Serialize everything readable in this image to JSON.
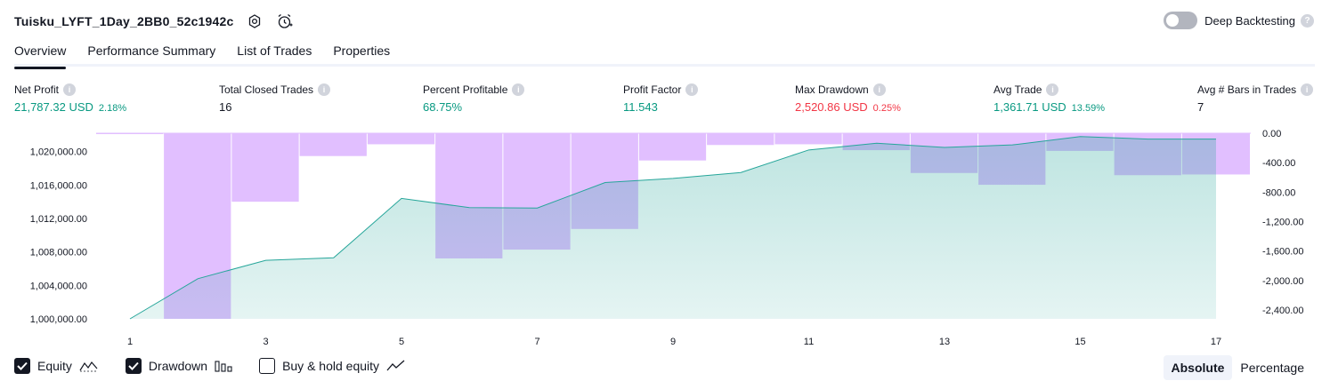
{
  "header": {
    "strategy_name": "Tuisku_LYFT_1Day_2BB0_52c1942c"
  },
  "deep_backtesting": {
    "label": "Deep Backtesting",
    "enabled": false
  },
  "tabs": [
    "Overview",
    "Performance Summary",
    "List of Trades",
    "Properties"
  ],
  "metrics": [
    {
      "label": "Net Profit",
      "value": "21,787.32 USD",
      "sub": "2.18%",
      "tone": "green"
    },
    {
      "label": "Total Closed Trades",
      "value": "16",
      "sub": "",
      "tone": "dark"
    },
    {
      "label": "Percent Profitable",
      "value": "68.75%",
      "sub": "",
      "tone": "green"
    },
    {
      "label": "Profit Factor",
      "value": "11.543",
      "sub": "",
      "tone": "green"
    },
    {
      "label": "Max Drawdown",
      "value": "2,520.86 USD",
      "sub": "0.25%",
      "tone": "red"
    },
    {
      "label": "Avg Trade",
      "value": "1,361.71 USD",
      "sub": "13.59%",
      "tone": "green"
    },
    {
      "label": "Avg # Bars in Trades",
      "value": "7",
      "sub": "",
      "tone": "dark"
    }
  ],
  "chart_data": {
    "type": "area",
    "x": [
      1,
      2,
      3,
      4,
      5,
      6,
      7,
      8,
      9,
      10,
      11,
      12,
      13,
      14,
      15,
      16,
      17
    ],
    "x_ticks": [
      "1",
      "3",
      "5",
      "7",
      "9",
      "11",
      "13",
      "15",
      "17"
    ],
    "equity": {
      "name": "Equity",
      "values": [
        1000000,
        1004800,
        1007000,
        1007300,
        1014400,
        1013300,
        1013250,
        1016300,
        1016800,
        1017500,
        1020200,
        1021000,
        1020500,
        1020800,
        1021800,
        1021500,
        1021500
      ],
      "ylim": [
        1000000,
        1022200
      ],
      "y_ticks": [
        "1,000,000.00",
        "1,004,000.00",
        "1,008,000.00",
        "1,012,000.00",
        "1,016,000.00",
        "1,020,000.00"
      ],
      "y_tick_values": [
        1000000,
        1004000,
        1008000,
        1012000,
        1016000,
        1020000
      ],
      "color": "#26a69a"
    },
    "drawdown": {
      "name": "Drawdown",
      "values": [
        -10,
        -2520,
        -930,
        -310,
        -150,
        -1700,
        -1580,
        -1300,
        -370,
        -160,
        -150,
        -230,
        -540,
        -700,
        -240,
        -570,
        -560
      ],
      "ylim": [
        -2520,
        0
      ],
      "y_ticks": [
        "0.00",
        "-400.00",
        "-800.00",
        "-1,200.00",
        "-1,600.00",
        "-2,000.00",
        "-2,400.00"
      ],
      "y_tick_values": [
        0,
        -400,
        -800,
        -1200,
        -1600,
        -2000,
        -2400
      ],
      "color": "#e1bfff"
    }
  },
  "legend": [
    {
      "label": "Equity",
      "checked": true,
      "icon": "equity-line-icon"
    },
    {
      "label": "Drawdown",
      "checked": true,
      "icon": "drawdown-bars-icon"
    },
    {
      "label": "Buy & hold equity",
      "checked": false,
      "icon": "buy-hold-line-icon"
    }
  ],
  "modes": {
    "absolute": "Absolute",
    "percentage": "Percentage",
    "selected": "Absolute"
  }
}
